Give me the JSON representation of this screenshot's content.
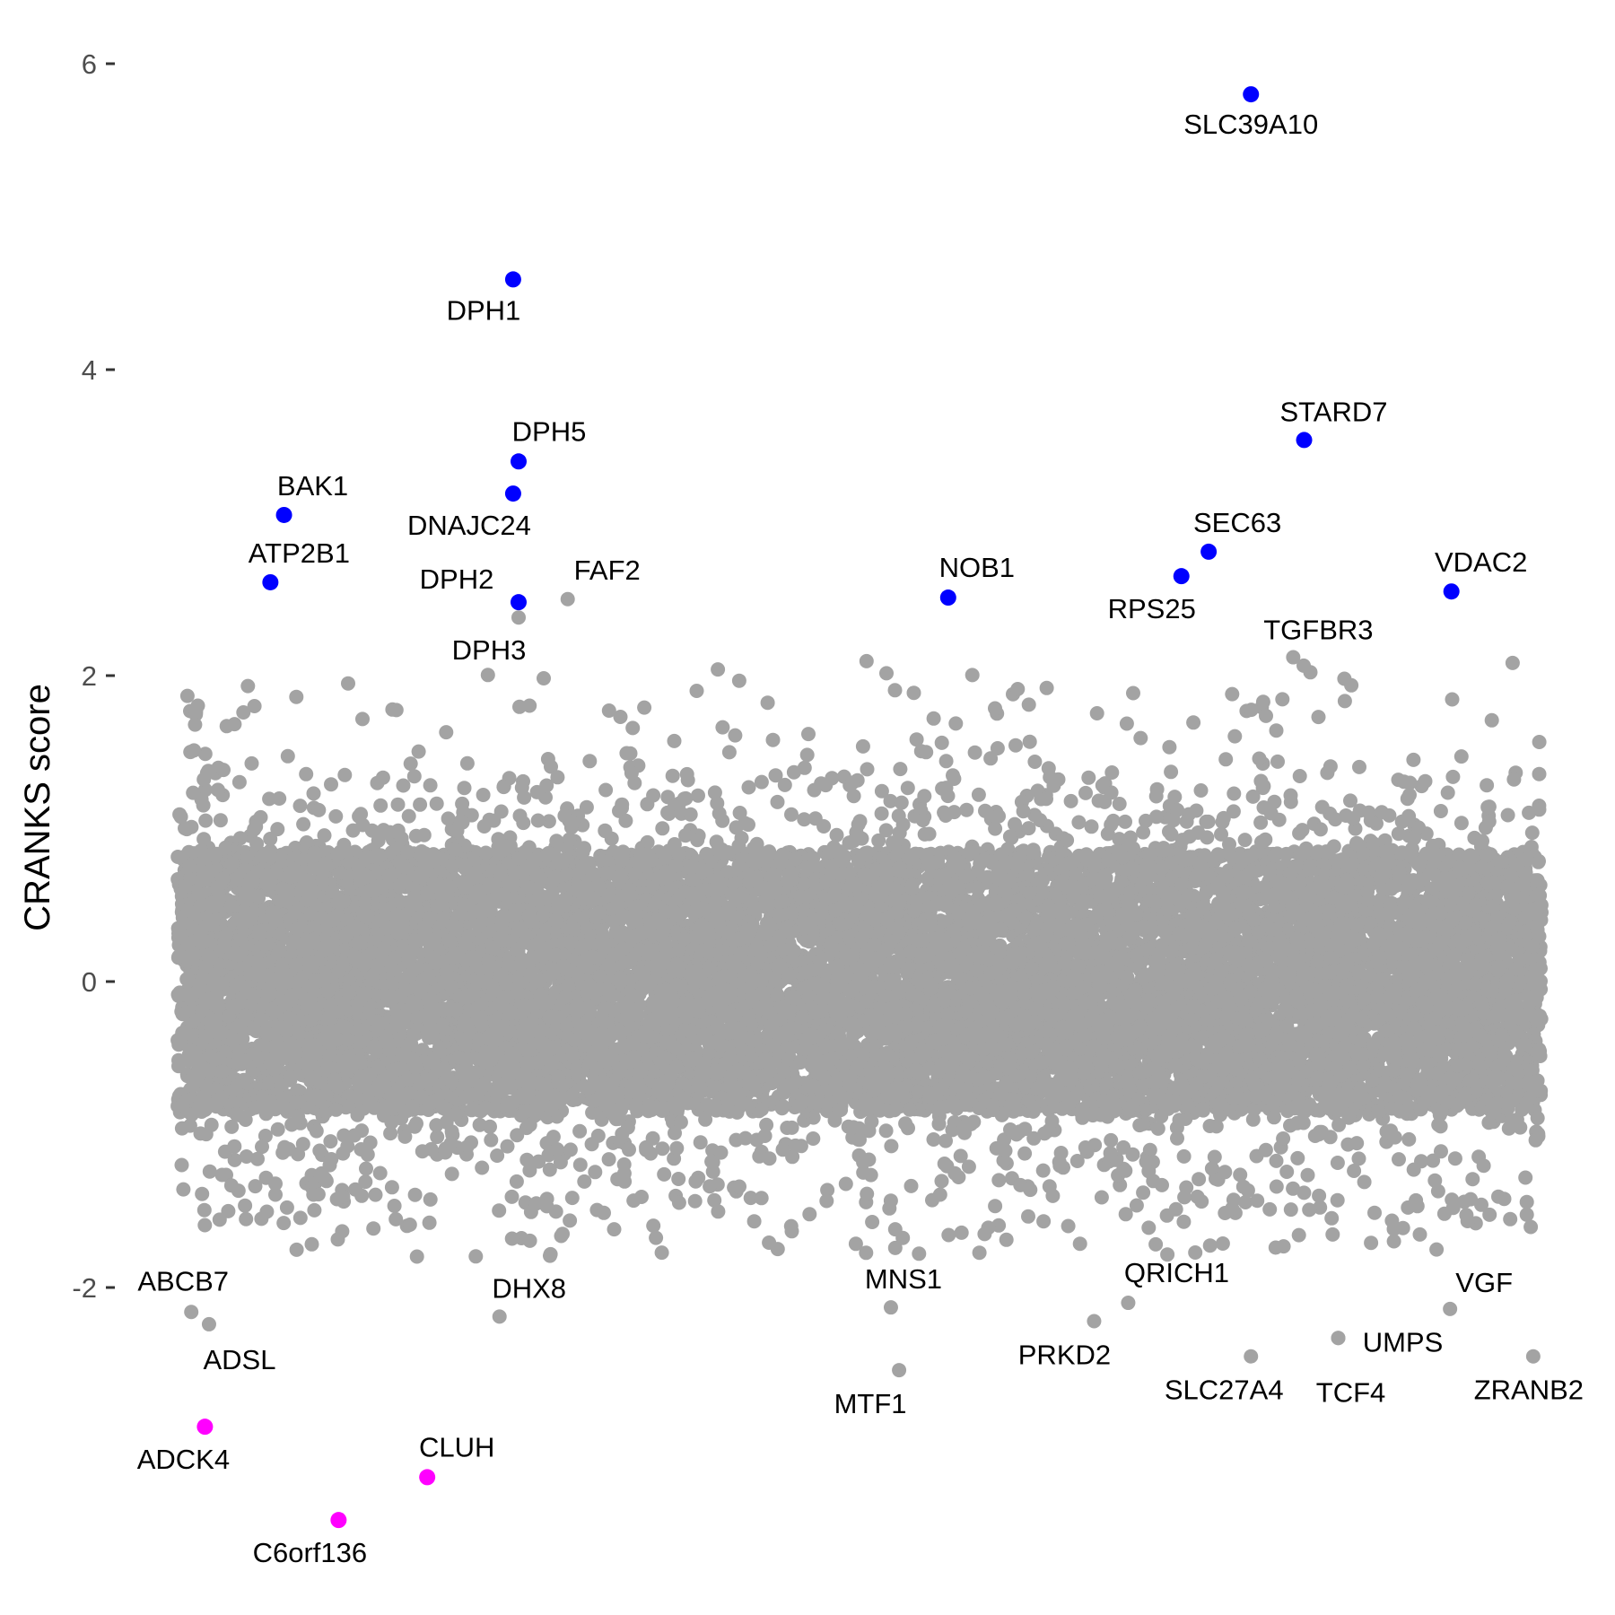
{
  "chart_data": {
    "type": "scatter",
    "title": "",
    "xlabel": "",
    "ylabel": "CRANKS score",
    "ylim": [
      -3.6,
      6.2
    ],
    "xlim": [
      0,
      1
    ],
    "grid": false,
    "legend": "none",
    "yticks": [
      {
        "value": -2,
        "label": "-2"
      },
      {
        "value": 0,
        "label": "0"
      },
      {
        "value": 2,
        "label": "2"
      },
      {
        "value": 4,
        "label": "4"
      },
      {
        "value": 6,
        "label": "6"
      }
    ],
    "colors": {
      "background_points": "#a3a3a3",
      "positive_hits": "#0000ff",
      "negative_hits": "#ff00ff"
    },
    "background_cloud": {
      "description_count": 14000,
      "core_range": [
        -0.85,
        0.85
      ],
      "tail_range": [
        -1.8,
        2.1
      ]
    },
    "highlighted_points": [
      {
        "name": "SLC39A10",
        "x": 0.787,
        "y": 5.8,
        "group": "positive"
      },
      {
        "name": "DPH1",
        "x": 0.246,
        "y": 4.59,
        "group": "positive"
      },
      {
        "name": "STARD7",
        "x": 0.826,
        "y": 3.54,
        "group": "positive"
      },
      {
        "name": "DPH5",
        "x": 0.25,
        "y": 3.4,
        "group": "positive"
      },
      {
        "name": "DNAJC24",
        "x": 0.246,
        "y": 3.19,
        "group": "positive"
      },
      {
        "name": "BAK1",
        "x": 0.078,
        "y": 3.05,
        "group": "positive"
      },
      {
        "name": "SEC63",
        "x": 0.756,
        "y": 2.81,
        "group": "positive"
      },
      {
        "name": "RPS25",
        "x": 0.736,
        "y": 2.65,
        "group": "positive"
      },
      {
        "name": "ATP2B1",
        "x": 0.068,
        "y": 2.61,
        "group": "positive"
      },
      {
        "name": "VDAC2",
        "x": 0.934,
        "y": 2.55,
        "group": "positive"
      },
      {
        "name": "NOB1",
        "x": 0.565,
        "y": 2.51,
        "group": "positive"
      },
      {
        "name": "DPH2",
        "x": 0.25,
        "y": 2.48,
        "group": "positive"
      },
      {
        "name": "ADCK4",
        "x": 0.02,
        "y": -2.91,
        "group": "negative"
      },
      {
        "name": "CLUH",
        "x": 0.183,
        "y": -3.24,
        "group": "negative"
      },
      {
        "name": "C6orf136",
        "x": 0.118,
        "y": -3.52,
        "group": "negative"
      }
    ],
    "labeled_background_points": [
      {
        "name": "FAF2",
        "x": 0.286,
        "y": 2.5
      },
      {
        "name": "DPH3",
        "x": 0.25,
        "y": 2.38
      },
      {
        "name": "TGFBR3",
        "x": 0.818,
        "y": 2.12
      },
      {
        "name": "ABCB7",
        "x": 0.01,
        "y": -2.16
      },
      {
        "name": "ADSL",
        "x": 0.023,
        "y": -2.24
      },
      {
        "name": "DHX8",
        "x": 0.236,
        "y": -2.19
      },
      {
        "name": "MNS1",
        "x": 0.523,
        "y": -2.13
      },
      {
        "name": "MTF1",
        "x": 0.529,
        "y": -2.54
      },
      {
        "name": "PRKD2",
        "x": 0.672,
        "y": -2.22
      },
      {
        "name": "QRICH1",
        "x": 0.697,
        "y": -2.1
      },
      {
        "name": "SLC27A4",
        "x": 0.787,
        "y": -2.45
      },
      {
        "name": "UMPS",
        "x": 0.851,
        "y": -2.33
      },
      {
        "name": "TCF4",
        "x": 0.851,
        "y": -2.33
      },
      {
        "name": "VGF",
        "x": 0.933,
        "y": -2.14
      },
      {
        "name": "ZRANB2",
        "x": 0.994,
        "y": -2.45
      }
    ]
  }
}
